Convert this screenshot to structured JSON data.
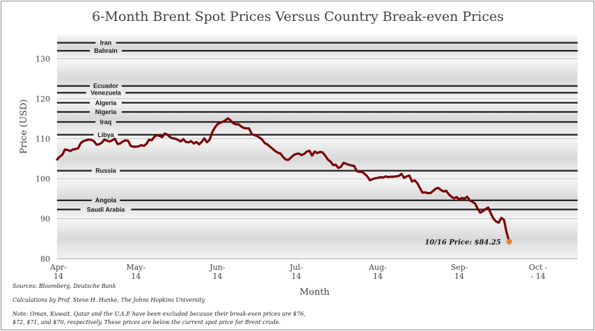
{
  "chart_data": {
    "type": "line",
    "title": "6-Month Brent Spot Prices Versus Country Break-even Prices",
    "xlabel": "Month",
    "ylabel": "Price (USD)",
    "ylim": [
      80,
      136
    ],
    "yticks": [
      80,
      90,
      100,
      110,
      120,
      130
    ],
    "xticks": [
      {
        "line1": "Apr-",
        "line2": "14",
        "day": 0
      },
      {
        "line1": "May-",
        "line2": "14",
        "day": 30
      },
      {
        "line1": "Jun-",
        "line2": "14",
        "day": 61
      },
      {
        "line1": "Jul-",
        "line2": "14",
        "day": 91
      },
      {
        "line1": "Aug-",
        "line2": "14",
        "day": 122
      },
      {
        "line1": "Sep-",
        "line2": "14",
        "day": 153
      },
      {
        "line1": "Oct -",
        "line2": "- 14",
        "day": 183
      }
    ],
    "x_max_day": 198,
    "series": [
      {
        "name": "Brent Spot Price",
        "color": "#7b0000",
        "points": [
          [
            0,
            104.8
          ],
          [
            1,
            105.5
          ],
          [
            2,
            106.0
          ],
          [
            3,
            107.3
          ],
          [
            4,
            107.2
          ],
          [
            5,
            106.9
          ],
          [
            6,
            107.3
          ],
          [
            7,
            107.4
          ],
          [
            8,
            107.6
          ],
          [
            9,
            108.9
          ],
          [
            10,
            109.4
          ],
          [
            11,
            109.6
          ],
          [
            12,
            109.8
          ],
          [
            13,
            109.7
          ],
          [
            14,
            109.4
          ],
          [
            15,
            108.5
          ],
          [
            16,
            108.6
          ],
          [
            17,
            109.0
          ],
          [
            18,
            109.8
          ],
          [
            19,
            109.5
          ],
          [
            20,
            109.3
          ],
          [
            21,
            109.6
          ],
          [
            22,
            110.0
          ],
          [
            23,
            108.7
          ],
          [
            24,
            108.8
          ],
          [
            25,
            109.3
          ],
          [
            26,
            109.6
          ],
          [
            27,
            109.5
          ],
          [
            28,
            108.2
          ],
          [
            29,
            108.0
          ],
          [
            30,
            108.0
          ],
          [
            31,
            108.1
          ],
          [
            32,
            108.4
          ],
          [
            33,
            108.2
          ],
          [
            34,
            108.7
          ],
          [
            35,
            109.8
          ],
          [
            36,
            109.6
          ],
          [
            37,
            110.5
          ],
          [
            38,
            110.9
          ],
          [
            39,
            110.7
          ],
          [
            40,
            110.4
          ],
          [
            41,
            111.3
          ],
          [
            42,
            111.0
          ],
          [
            43,
            110.4
          ],
          [
            44,
            110.1
          ],
          [
            45,
            110.0
          ],
          [
            46,
            109.7
          ],
          [
            47,
            109.3
          ],
          [
            48,
            109.9
          ],
          [
            49,
            109.2
          ],
          [
            50,
            109.1
          ],
          [
            51,
            109.4
          ],
          [
            52,
            108.8
          ],
          [
            53,
            109.2
          ],
          [
            54,
            108.6
          ],
          [
            55,
            109.2
          ],
          [
            56,
            110.1
          ],
          [
            57,
            109.1
          ],
          [
            58,
            109.7
          ],
          [
            59,
            111.6
          ],
          [
            60,
            112.8
          ],
          [
            61,
            113.6
          ],
          [
            62,
            114.0
          ],
          [
            63,
            114.2
          ],
          [
            64,
            114.6
          ],
          [
            65,
            115.1
          ],
          [
            66,
            114.6
          ],
          [
            67,
            113.9
          ],
          [
            68,
            113.6
          ],
          [
            69,
            113.6
          ],
          [
            70,
            113.1
          ],
          [
            71,
            112.7
          ],
          [
            72,
            112.6
          ],
          [
            73,
            112.6
          ],
          [
            74,
            111.2
          ],
          [
            75,
            110.9
          ],
          [
            76,
            110.7
          ],
          [
            77,
            110.3
          ],
          [
            78,
            109.8
          ],
          [
            79,
            108.9
          ],
          [
            80,
            108.6
          ],
          [
            81,
            108.0
          ],
          [
            82,
            107.5
          ],
          [
            83,
            106.9
          ],
          [
            84,
            106.5
          ],
          [
            85,
            106.3
          ],
          [
            86,
            105.4
          ],
          [
            87,
            104.8
          ],
          [
            88,
            104.7
          ],
          [
            89,
            105.3
          ],
          [
            90,
            105.9
          ],
          [
            91,
            106.2
          ],
          [
            92,
            106.3
          ],
          [
            93,
            105.9
          ],
          [
            94,
            106.2
          ],
          [
            95,
            106.8
          ],
          [
            96,
            107.0
          ],
          [
            97,
            105.8
          ],
          [
            98,
            106.8
          ],
          [
            99,
            106.4
          ],
          [
            100,
            106.7
          ],
          [
            101,
            106.6
          ],
          [
            102,
            105.8
          ],
          [
            103,
            104.8
          ],
          [
            104,
            104.3
          ],
          [
            105,
            103.4
          ],
          [
            106,
            103.5
          ],
          [
            107,
            102.7
          ],
          [
            108,
            103.0
          ],
          [
            109,
            104.0
          ],
          [
            110,
            103.7
          ],
          [
            111,
            103.5
          ],
          [
            112,
            103.3
          ],
          [
            113,
            103.2
          ],
          [
            114,
            101.9
          ],
          [
            115,
            101.7
          ],
          [
            116,
            101.7
          ],
          [
            117,
            101.2
          ],
          [
            118,
            100.6
          ],
          [
            119,
            99.6
          ],
          [
            120,
            99.9
          ],
          [
            121,
            100.1
          ],
          [
            122,
            100.2
          ],
          [
            123,
            100.4
          ],
          [
            124,
            100.3
          ],
          [
            125,
            100.6
          ],
          [
            126,
            100.4
          ],
          [
            127,
            100.5
          ],
          [
            128,
            100.5
          ],
          [
            129,
            100.6
          ],
          [
            130,
            100.7
          ],
          [
            131,
            101.2
          ],
          [
            132,
            100.2
          ],
          [
            133,
            100.6
          ],
          [
            134,
            100.8
          ],
          [
            135,
            99.3
          ],
          [
            136,
            99.6
          ],
          [
            137,
            98.9
          ],
          [
            138,
            97.7
          ],
          [
            139,
            96.5
          ],
          [
            140,
            96.6
          ],
          [
            141,
            96.4
          ],
          [
            142,
            96.4
          ],
          [
            143,
            96.9
          ],
          [
            144,
            97.5
          ],
          [
            145,
            97.7
          ],
          [
            146,
            97.2
          ],
          [
            147,
            96.8
          ],
          [
            148,
            97.0
          ],
          [
            149,
            96.1
          ],
          [
            150,
            95.5
          ],
          [
            151,
            95.1
          ],
          [
            152,
            95.4
          ],
          [
            153,
            94.8
          ],
          [
            154,
            95.2
          ],
          [
            155,
            95.0
          ],
          [
            156,
            95.5
          ],
          [
            157,
            94.6
          ],
          [
            158,
            94.2
          ],
          [
            159,
            93.8
          ],
          [
            160,
            92.5
          ],
          [
            161,
            91.5
          ],
          [
            162,
            91.9
          ],
          [
            163,
            92.4
          ],
          [
            164,
            92.8
          ],
          [
            165,
            91.3
          ],
          [
            166,
            90.0
          ],
          [
            167,
            89.3
          ],
          [
            168,
            89.0
          ],
          [
            169,
            90.2
          ],
          [
            170,
            89.7
          ],
          [
            171,
            86.5
          ],
          [
            172,
            84.25
          ]
        ]
      }
    ],
    "breakeven_lines": [
      {
        "country": "Iran",
        "price": 134.0
      },
      {
        "country": "Bahrain",
        "price": 132.0
      },
      {
        "country": "Ecuador",
        "price": 123.2
      },
      {
        "country": "Venezuela",
        "price": 121.5
      },
      {
        "country": "Algeria",
        "price": 119.0
      },
      {
        "country": "Nigeria",
        "price": 116.7
      },
      {
        "country": "Iraq",
        "price": 114.2
      },
      {
        "country": "Libya",
        "price": 111.0
      },
      {
        "country": "Russia",
        "price": 102.0
      },
      {
        "country": "Angola",
        "price": 94.6
      },
      {
        "country": "Saudi Arabia",
        "price": 92.3
      }
    ],
    "final_point": {
      "label": "10/16 Price: $84.25",
      "value": 84.25,
      "color": "#f07f2a"
    },
    "line_color": "#7b0000",
    "breakeven_color": "#1f1f1f",
    "text_color": "#404040"
  },
  "notes": {
    "sources": "Sources: Bloomberg, Deutsche Bank",
    "calculations": "Calculations by Prof. Steve H. Hanke, The Johns Hopkins University",
    "note_line1": "Note: Oman, Kuwait,  Qatar and the U.A.E  have been excluded because their break-even prices are $76,",
    "note_line2": "$72, $71, and $70, respectively. These prices are below the current spot price for Brent crude."
  }
}
